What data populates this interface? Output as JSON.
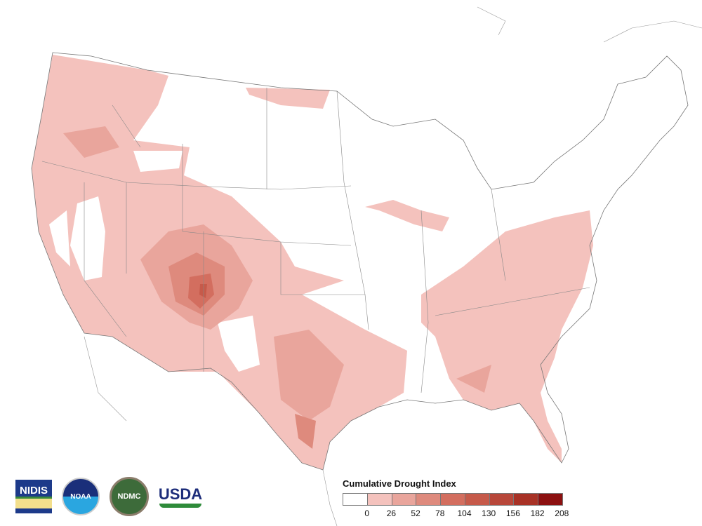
{
  "legend": {
    "title": "Cumulative Drought Index",
    "ticks": [
      "0",
      "26",
      "52",
      "78",
      "104",
      "130",
      "156",
      "182",
      "208"
    ],
    "colors": [
      "#ffffff",
      "#f4c2bd",
      "#e9a59c",
      "#de8a7d",
      "#d36e5f",
      "#c65a4a",
      "#b8473a",
      "#a83226",
      "#8c1010"
    ]
  },
  "logos": {
    "nidis": "NIDIS",
    "noaa": "NOAA",
    "ndmc": "NDMC",
    "usda": "USDA"
  }
}
